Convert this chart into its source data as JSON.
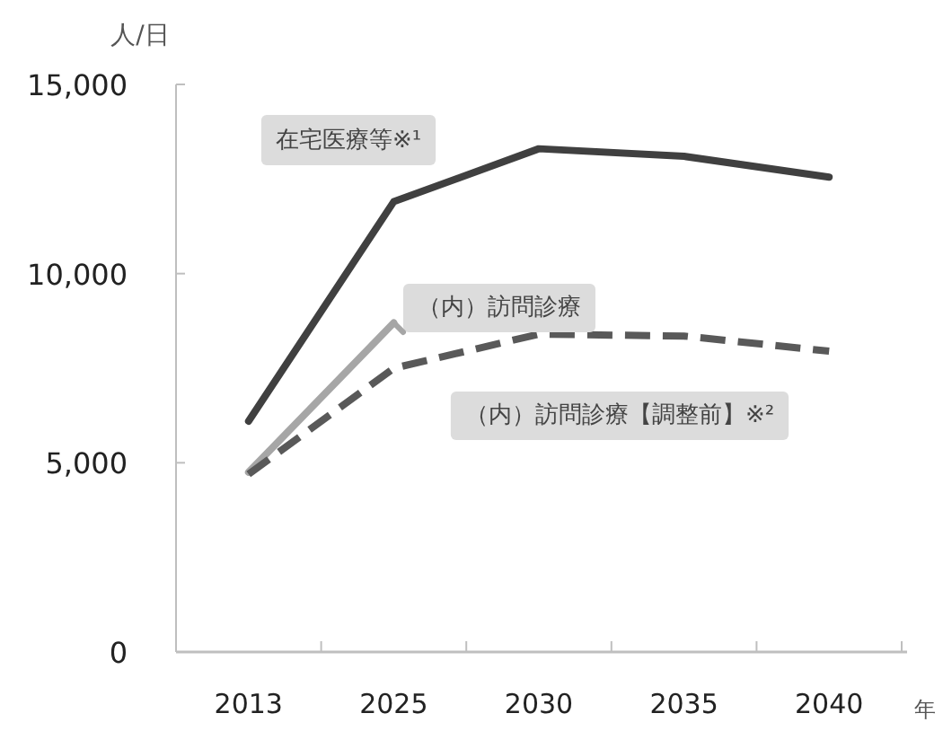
{
  "chart_data": {
    "type": "line",
    "ylabel": "人/日",
    "xlabel": "年",
    "categories": [
      "2013",
      "2025",
      "2030",
      "2035",
      "2040"
    ],
    "ylim": [
      0,
      15000
    ],
    "yticks": [
      {
        "value": 0,
        "label": "0"
      },
      {
        "value": 5000,
        "label": "5,000"
      },
      {
        "value": 10000,
        "label": "10,000"
      },
      {
        "value": 15000,
        "label": "15,000"
      }
    ],
    "grid": false,
    "legend": false,
    "marker": "none",
    "series": [
      {
        "name": "在宅医療等※¹",
        "color": "#404040",
        "line_style": "solid",
        "values": [
          6100,
          11900,
          13300,
          13100,
          12550
        ]
      },
      {
        "name": "（内）訪問診療",
        "color": "#a6a6a6",
        "line_style": "solid",
        "values": [
          4750,
          8700,
          null,
          null,
          null
        ]
      },
      {
        "name": "（内）訪問診療【調整前】※²",
        "color": "#595959",
        "line_style": "dashed",
        "values": [
          4700,
          7500,
          8400,
          8350,
          7950
        ]
      }
    ]
  }
}
